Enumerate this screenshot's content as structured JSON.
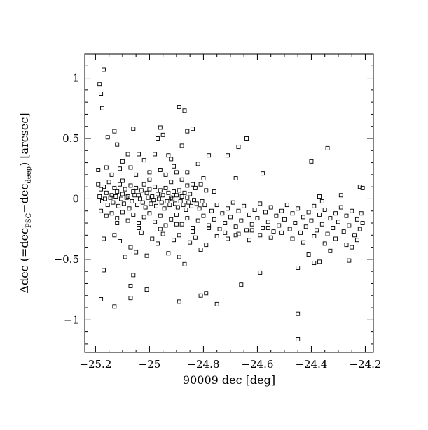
{
  "chart_data": {
    "type": "scatter",
    "title": "",
    "xlabel": "90009 dec [deg]",
    "ylabel_parts": {
      "prefix": "Δdec (=dec",
      "sub1": "PSC",
      "mid": "−dec",
      "sub2": "deep",
      "suffix": ") [arcsec]"
    },
    "xlim": [
      -25.24,
      -24.17
    ],
    "ylim": [
      -1.27,
      1.2
    ],
    "xticks": [
      -25.2,
      -25.0,
      -24.8,
      -24.6,
      -24.4,
      -24.2
    ],
    "xtick_labels": [
      "−25.2",
      "−25",
      "−24.8",
      "−24.6",
      "−24.4",
      "−24.2"
    ],
    "yticks": [
      -1,
      -0.5,
      0,
      0.5,
      1
    ],
    "ytick_labels": [
      "−1",
      "−0.5",
      "0",
      "0.5",
      "1"
    ],
    "reference_line_y": 0,
    "marker": "open-square",
    "grid": false,
    "legend": "none",
    "points": [
      [
        -25.185,
        0.95
      ],
      [
        -25.18,
        0.87
      ],
      [
        -25.17,
        1.07
      ],
      [
        -25.175,
        0.75
      ],
      [
        -25.13,
        0.56
      ],
      [
        -25.155,
        0.51
      ],
      [
        -25.06,
        0.58
      ],
      [
        -25.12,
        0.45
      ],
      [
        -24.96,
        0.59
      ],
      [
        -24.89,
        0.76
      ],
      [
        -24.87,
        0.73
      ],
      [
        -24.86,
        0.56
      ],
      [
        -24.84,
        0.58
      ],
      [
        -24.95,
        0.53
      ],
      [
        -24.97,
        0.5
      ],
      [
        -24.88,
        0.44
      ],
      [
        -24.93,
        0.36
      ],
      [
        -24.78,
        0.36
      ],
      [
        -24.71,
        0.36
      ],
      [
        -24.67,
        0.43
      ],
      [
        -24.64,
        0.5
      ],
      [
        -24.58,
        0.21
      ],
      [
        -24.4,
        0.31
      ],
      [
        -24.34,
        0.42
      ],
      [
        -25.04,
        0.37
      ],
      [
        -25.08,
        0.37
      ],
      [
        -25.1,
        0.31
      ],
      [
        -25.02,
        0.32
      ],
      [
        -24.98,
        0.37
      ],
      [
        -24.92,
        0.33
      ],
      [
        -24.9,
        0.22
      ],
      [
        -24.86,
        0.22
      ],
      [
        -24.82,
        0.29
      ],
      [
        -24.8,
        0.17
      ],
      [
        -24.68,
        0.17
      ],
      [
        -25.19,
        0.24
      ],
      [
        -25.16,
        0.26
      ],
      [
        -25.14,
        0.2
      ],
      [
        -25.11,
        0.25
      ],
      [
        -25.07,
        0.26
      ],
      [
        -25.05,
        0.2
      ],
      [
        -25.0,
        0.22
      ],
      [
        -24.96,
        0.24
      ],
      [
        -24.94,
        0.2
      ],
      [
        -24.91,
        0.27
      ],
      [
        -24.88,
        0.16
      ],
      [
        -24.84,
        0.12
      ],
      [
        -24.83,
        0.09
      ],
      [
        -24.81,
        0.12
      ],
      [
        -24.79,
        0.07
      ],
      [
        -24.76,
        0.06
      ],
      [
        -24.22,
        0.1
      ],
      [
        -24.21,
        0.09
      ],
      [
        -24.37,
        0.02
      ],
      [
        -24.29,
        0.03
      ],
      [
        -25.19,
        0.12
      ],
      [
        -25.18,
        0.08
      ],
      [
        -25.17,
        0.1
      ],
      [
        -25.16,
        0.05
      ],
      [
        -25.15,
        0.14
      ],
      [
        -25.14,
        0.03
      ],
      [
        -25.13,
        0.09
      ],
      [
        -25.12,
        0.06
      ],
      [
        -25.11,
        0.12
      ],
      [
        -25.1,
        0.04
      ],
      [
        -25.09,
        0.08
      ],
      [
        -25.08,
        0.02
      ],
      [
        -25.07,
        0.11
      ],
      [
        -25.06,
        0.06
      ],
      [
        -25.05,
        0.09
      ],
      [
        -25.04,
        0.03
      ],
      [
        -25.03,
        0.07
      ],
      [
        -25.02,
        0.12
      ],
      [
        -25.01,
        0.05
      ],
      [
        -25.0,
        0.08
      ],
      [
        -24.99,
        0.02
      ],
      [
        -24.98,
        0.1
      ],
      [
        -24.97,
        0.04
      ],
      [
        -24.96,
        0.07
      ],
      [
        -24.95,
        0.03
      ],
      [
        -24.94,
        0.09
      ],
      [
        -24.93,
        0.05
      ],
      [
        -24.92,
        0.01
      ],
      [
        -24.91,
        0.06
      ],
      [
        -24.9,
        0.03
      ],
      [
        -24.89,
        0.07
      ],
      [
        -24.88,
        0.02
      ],
      [
        -24.87,
        0.05
      ],
      [
        -24.86,
        0.01
      ],
      [
        -24.85,
        0.04
      ],
      [
        -25.185,
        0.02
      ],
      [
        -25.175,
        -0.02
      ],
      [
        -25.165,
        0.0
      ],
      [
        -25.155,
        -0.05
      ],
      [
        -25.145,
        0.01
      ],
      [
        -25.135,
        -0.03
      ],
      [
        -25.125,
        0.02
      ],
      [
        -25.115,
        -0.06
      ],
      [
        -25.105,
        0.0
      ],
      [
        -25.095,
        -0.04
      ],
      [
        -25.085,
        0.01
      ],
      [
        -25.075,
        -0.08
      ],
      [
        -25.065,
        -0.02
      ],
      [
        -25.055,
        0.03
      ],
      [
        -25.045,
        -0.05
      ],
      [
        -25.035,
        0.0
      ],
      [
        -25.025,
        -0.03
      ],
      [
        -25.015,
        -0.07
      ],
      [
        -25.005,
        0.01
      ],
      [
        -24.995,
        -0.04
      ],
      [
        -24.985,
        -0.01
      ],
      [
        -24.975,
        -0.06
      ],
      [
        -24.965,
        0.0
      ],
      [
        -24.955,
        -0.03
      ],
      [
        -24.945,
        -0.08
      ],
      [
        -24.935,
        -0.02
      ],
      [
        -24.925,
        -0.05
      ],
      [
        -24.915,
        0.0
      ],
      [
        -24.905,
        -0.04
      ],
      [
        -24.895,
        -0.07
      ],
      [
        -24.885,
        -0.02
      ],
      [
        -24.875,
        -0.05
      ],
      [
        -24.865,
        -0.09
      ],
      [
        -24.855,
        -0.03
      ],
      [
        -24.845,
        -0.06
      ],
      [
        -24.835,
        -0.01
      ],
      [
        -24.825,
        -0.04
      ],
      [
        -24.815,
        -0.08
      ],
      [
        -24.805,
        -0.02
      ],
      [
        -24.795,
        -0.05
      ],
      [
        -25.18,
        -0.1
      ],
      [
        -25.16,
        -0.14
      ],
      [
        -25.14,
        -0.12
      ],
      [
        -25.12,
        -0.16
      ],
      [
        -25.1,
        -0.11
      ],
      [
        -25.08,
        -0.18
      ],
      [
        -25.06,
        -0.13
      ],
      [
        -25.04,
        -0.2
      ],
      [
        -25.02,
        -0.15
      ],
      [
        -25.0,
        -0.12
      ],
      [
        -24.98,
        -0.19
      ],
      [
        -24.96,
        -0.14
      ],
      [
        -24.94,
        -0.22
      ],
      [
        -24.92,
        -0.17
      ],
      [
        -24.9,
        -0.13
      ],
      [
        -24.88,
        -0.21
      ],
      [
        -24.86,
        -0.16
      ],
      [
        -24.84,
        -0.24
      ],
      [
        -24.82,
        -0.18
      ],
      [
        -24.8,
        -0.14
      ],
      [
        -24.78,
        -0.22
      ],
      [
        -24.76,
        -0.17
      ],
      [
        -24.74,
        -0.25
      ],
      [
        -24.72,
        -0.2
      ],
      [
        -24.7,
        -0.15
      ],
      [
        -24.68,
        -0.23
      ],
      [
        -24.66,
        -0.18
      ],
      [
        -24.64,
        -0.26
      ],
      [
        -24.62,
        -0.21
      ],
      [
        -24.6,
        -0.16
      ],
      [
        -24.58,
        -0.24
      ],
      [
        -24.56,
        -0.19
      ],
      [
        -24.54,
        -0.27
      ],
      [
        -24.52,
        -0.22
      ],
      [
        -24.5,
        -0.17
      ],
      [
        -24.48,
        -0.25
      ],
      [
        -24.46,
        -0.2
      ],
      [
        -24.44,
        -0.28
      ],
      [
        -24.42,
        -0.23
      ],
      [
        -24.4,
        -0.18
      ],
      [
        -24.38,
        -0.26
      ],
      [
        -24.36,
        -0.21
      ],
      [
        -24.34,
        -0.29
      ],
      [
        -24.32,
        -0.24
      ],
      [
        -24.3,
        -0.19
      ],
      [
        -24.28,
        -0.27
      ],
      [
        -24.26,
        -0.22
      ],
      [
        -24.24,
        -0.3
      ],
      [
        -24.22,
        -0.25
      ],
      [
        -24.21,
        -0.2
      ],
      [
        -24.77,
        -0.1
      ],
      [
        -24.75,
        -0.05
      ],
      [
        -24.73,
        -0.12
      ],
      [
        -24.71,
        -0.08
      ],
      [
        -24.69,
        -0.03
      ],
      [
        -24.67,
        -0.1
      ],
      [
        -24.65,
        -0.06
      ],
      [
        -24.63,
        -0.13
      ],
      [
        -24.61,
        -0.09
      ],
      [
        -24.59,
        -0.04
      ],
      [
        -24.57,
        -0.11
      ],
      [
        -24.55,
        -0.07
      ],
      [
        -24.53,
        -0.14
      ],
      [
        -24.51,
        -0.1
      ],
      [
        -24.49,
        -0.05
      ],
      [
        -24.47,
        -0.12
      ],
      [
        -24.45,
        -0.08
      ],
      [
        -24.43,
        -0.15
      ],
      [
        -24.41,
        -0.11
      ],
      [
        -24.39,
        -0.06
      ],
      [
        -24.37,
        -0.13
      ],
      [
        -24.35,
        -0.09
      ],
      [
        -24.33,
        -0.16
      ],
      [
        -24.31,
        -0.12
      ],
      [
        -24.29,
        -0.07
      ],
      [
        -24.27,
        -0.14
      ],
      [
        -24.25,
        -0.1
      ],
      [
        -24.23,
        -0.17
      ],
      [
        -24.215,
        -0.12
      ],
      [
        -24.36,
        -0.02
      ],
      [
        -25.17,
        -0.33
      ],
      [
        -25.13,
        -0.3
      ],
      [
        -25.11,
        -0.35
      ],
      [
        -25.07,
        -0.4
      ],
      [
        -25.03,
        -0.28
      ],
      [
        -24.99,
        -0.33
      ],
      [
        -24.97,
        -0.37
      ],
      [
        -24.95,
        -0.29
      ],
      [
        -24.91,
        -0.34
      ],
      [
        -24.89,
        -0.3
      ],
      [
        -24.85,
        -0.36
      ],
      [
        -24.83,
        -0.32
      ],
      [
        -24.79,
        -0.38
      ],
      [
        -24.75,
        -0.31
      ],
      [
        -24.71,
        -0.33
      ],
      [
        -24.67,
        -0.29
      ],
      [
        -24.63,
        -0.34
      ],
      [
        -24.59,
        -0.3
      ],
      [
        -24.55,
        -0.32
      ],
      [
        -24.51,
        -0.28
      ],
      [
        -24.47,
        -0.33
      ],
      [
        -24.43,
        -0.36
      ],
      [
        -24.39,
        -0.31
      ],
      [
        -24.35,
        -0.37
      ],
      [
        -24.31,
        -0.33
      ],
      [
        -24.27,
        -0.38
      ],
      [
        -24.23,
        -0.34
      ],
      [
        -24.25,
        -0.4
      ],
      [
        -24.33,
        -0.43
      ],
      [
        -24.41,
        -0.46
      ],
      [
        -25.17,
        -0.59
      ],
      [
        -25.09,
        -0.48
      ],
      [
        -25.05,
        -0.44
      ],
      [
        -25.01,
        -0.47
      ],
      [
        -24.93,
        -0.45
      ],
      [
        -24.89,
        -0.48
      ],
      [
        -24.87,
        -0.54
      ],
      [
        -24.81,
        -0.42
      ],
      [
        -24.45,
        -0.57
      ],
      [
        -24.37,
        -0.52
      ],
      [
        -24.39,
        -0.53
      ],
      [
        -24.26,
        -0.51
      ],
      [
        -24.59,
        -0.61
      ],
      [
        -24.66,
        -0.71
      ],
      [
        -25.06,
        -0.63
      ],
      [
        -25.07,
        -0.72
      ],
      [
        -25.01,
        -0.75
      ],
      [
        -25.07,
        -0.82
      ],
      [
        -25.18,
        -0.83
      ],
      [
        -24.81,
        -0.8
      ],
      [
        -24.79,
        -0.78
      ],
      [
        -24.75,
        -0.87
      ],
      [
        -24.89,
        -0.85
      ],
      [
        -25.13,
        -0.89
      ],
      [
        -24.45,
        -0.95
      ],
      [
        -24.45,
        -1.16
      ],
      [
        -25.1,
        0.15
      ],
      [
        -25.0,
        0.16
      ],
      [
        -24.92,
        0.14
      ],
      [
        -24.86,
        0.11
      ],
      [
        -25.12,
        -0.2
      ],
      [
        -25.04,
        -0.24
      ],
      [
        -24.96,
        -0.25
      ],
      [
        -24.9,
        -0.21
      ],
      [
        -24.84,
        -0.27
      ],
      [
        -24.78,
        -0.24
      ],
      [
        -24.72,
        -0.28
      ],
      [
        -24.68,
        -0.3
      ],
      [
        -24.62,
        -0.26
      ],
      [
        -24.56,
        -0.24
      ]
    ]
  }
}
